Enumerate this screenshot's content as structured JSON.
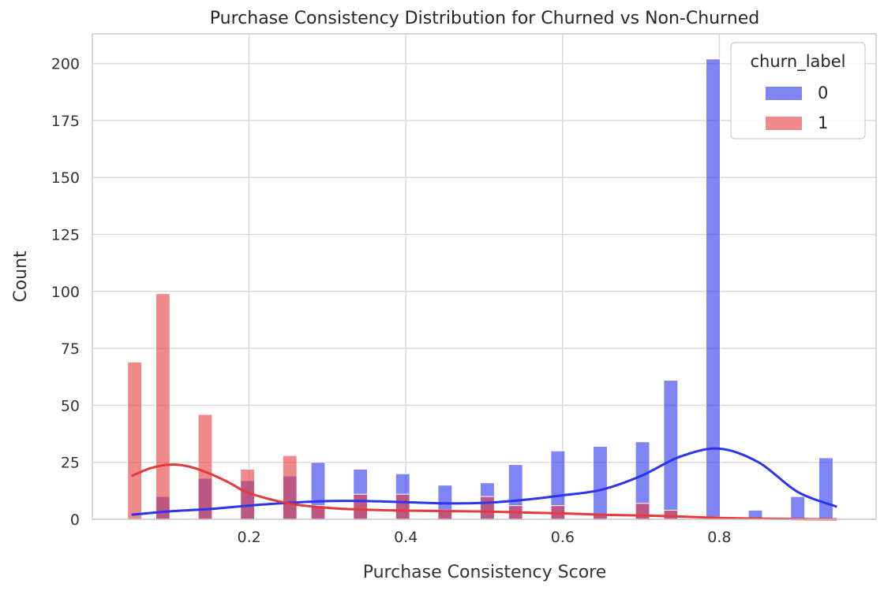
{
  "chart_data": {
    "type": "bar",
    "subtype": "overlapping-histogram-with-kde",
    "title": "Purchase Consistency Distribution for Churned vs Non-Churned",
    "xlabel": "Purchase Consistency Score",
    "ylabel": "Count",
    "xlim": [
      0.0,
      1.0
    ],
    "ylim": [
      0,
      213
    ],
    "xticks": [
      0.2,
      0.4,
      0.6,
      0.8
    ],
    "xtick_labels": [
      "0.2",
      "0.4",
      "0.6",
      "0.8"
    ],
    "yticks": [
      0,
      25,
      50,
      75,
      100,
      125,
      150,
      175,
      200
    ],
    "ytick_labels": [
      "0",
      "25",
      "50",
      "75",
      "100",
      "125",
      "150",
      "175",
      "200"
    ],
    "grid": true,
    "legend": {
      "title": "churn_label",
      "placement": "top-right"
    },
    "bin_width": 0.018,
    "series": [
      {
        "name": "0",
        "color": "#2b34ef",
        "bars": [
          {
            "x": 0.09,
            "count": 10
          },
          {
            "x": 0.144,
            "count": 18
          },
          {
            "x": 0.198,
            "count": 17
          },
          {
            "x": 0.252,
            "count": 19
          },
          {
            "x": 0.288,
            "count": 25
          },
          {
            "x": 0.342,
            "count": 22
          },
          {
            "x": 0.396,
            "count": 20
          },
          {
            "x": 0.45,
            "count": 15
          },
          {
            "x": 0.504,
            "count": 16
          },
          {
            "x": 0.54,
            "count": 24
          },
          {
            "x": 0.594,
            "count": 30
          },
          {
            "x": 0.648,
            "count": 32
          },
          {
            "x": 0.702,
            "count": 34
          },
          {
            "x": 0.738,
            "count": 61
          },
          {
            "x": 0.792,
            "count": 202
          },
          {
            "x": 0.846,
            "count": 4
          },
          {
            "x": 0.9,
            "count": 10
          },
          {
            "x": 0.936,
            "count": 27
          }
        ],
        "kde": [
          [
            0.05,
            2
          ],
          [
            0.1,
            3.5
          ],
          [
            0.15,
            4.5
          ],
          [
            0.2,
            6
          ],
          [
            0.25,
            7.2
          ],
          [
            0.3,
            8
          ],
          [
            0.35,
            8
          ],
          [
            0.4,
            7.5
          ],
          [
            0.45,
            7
          ],
          [
            0.5,
            7.2
          ],
          [
            0.55,
            8.5
          ],
          [
            0.6,
            10.5
          ],
          [
            0.65,
            13
          ],
          [
            0.7,
            19
          ],
          [
            0.75,
            27.5
          ],
          [
            0.8,
            31
          ],
          [
            0.85,
            25
          ],
          [
            0.9,
            12
          ],
          [
            0.95,
            5.5
          ]
        ]
      },
      {
        "name": "1",
        "color": "#e63a3a",
        "bars": [
          {
            "x": 0.054,
            "count": 69
          },
          {
            "x": 0.09,
            "count": 99
          },
          {
            "x": 0.144,
            "count": 46
          },
          {
            "x": 0.198,
            "count": 22
          },
          {
            "x": 0.252,
            "count": 28
          },
          {
            "x": 0.288,
            "count": 6
          },
          {
            "x": 0.342,
            "count": 11
          },
          {
            "x": 0.396,
            "count": 11
          },
          {
            "x": 0.45,
            "count": 4
          },
          {
            "x": 0.504,
            "count": 10
          },
          {
            "x": 0.54,
            "count": 6
          },
          {
            "x": 0.594,
            "count": 6
          },
          {
            "x": 0.648,
            "count": 2
          },
          {
            "x": 0.702,
            "count": 7
          },
          {
            "x": 0.738,
            "count": 4
          },
          {
            "x": 0.792,
            "count": 1
          }
        ],
        "kde": [
          [
            0.05,
            19
          ],
          [
            0.075,
            22.5
          ],
          [
            0.1,
            24
          ],
          [
            0.125,
            23
          ],
          [
            0.15,
            20
          ],
          [
            0.175,
            16
          ],
          [
            0.2,
            11.5
          ],
          [
            0.25,
            7
          ],
          [
            0.3,
            5
          ],
          [
            0.35,
            4.2
          ],
          [
            0.4,
            3.8
          ],
          [
            0.45,
            3.6
          ],
          [
            0.5,
            3.4
          ],
          [
            0.55,
            3
          ],
          [
            0.6,
            2.6
          ],
          [
            0.65,
            2
          ],
          [
            0.7,
            1.7
          ],
          [
            0.75,
            1.2
          ],
          [
            0.8,
            0.6
          ],
          [
            0.85,
            0.3
          ],
          [
            0.9,
            0.1
          ],
          [
            0.95,
            0
          ]
        ]
      }
    ]
  }
}
